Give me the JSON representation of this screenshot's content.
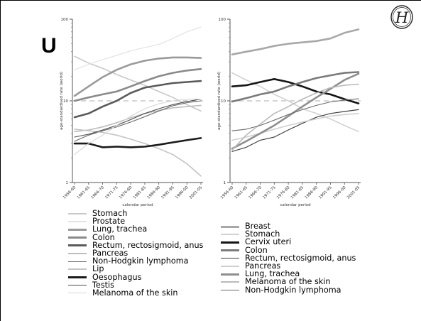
{
  "slide": {
    "letter": "U",
    "logo_text": "H",
    "logo_icon": "circled-h-logo-icon"
  },
  "chart_data": [
    {
      "type": "line",
      "xlabel": "calendar period",
      "ylabel": "age-standardised rate (world)",
      "y_scale": "log",
      "ylim": [
        1,
        100
      ],
      "yticks": [
        "1",
        "10",
        "100"
      ],
      "reference_line": 10,
      "categories": [
        "1956-60",
        "1961-65",
        "1966-70",
        "1971-75",
        "1976-80",
        "1981-85",
        "1986-90",
        "1991-95",
        "1996-00",
        "2001-05"
      ],
      "series": [
        {
          "name": "Stomach",
          "color": "#c8c8c8",
          "width": 1.6,
          "values": [
            35,
            29,
            25,
            21,
            18,
            15.5,
            13,
            11,
            9,
            7.5
          ]
        },
        {
          "name": "Prostate",
          "color": "#e3e3e3",
          "width": 1.2,
          "values": [
            24,
            28,
            32,
            36,
            41,
            45,
            49,
            58,
            70,
            80
          ]
        },
        {
          "name": "Lung, trachea",
          "color": "#9a9a9a",
          "width": 2.6,
          "values": [
            11.5,
            15,
            19.5,
            24,
            28,
            31,
            33,
            34,
            34,
            33.5
          ]
        },
        {
          "name": "Colon",
          "color": "#8a8a8a",
          "width": 2.6,
          "values": [
            10,
            11,
            12,
            13,
            15,
            17.5,
            20,
            22,
            23.5,
            24.5
          ]
        },
        {
          "name": "Rectum, rectosigmoid, anus",
          "color": "#5a5a5a",
          "width": 2.6,
          "values": [
            6.3,
            7,
            8.5,
            10,
            12.5,
            14.5,
            15.5,
            16.5,
            17,
            17.5
          ]
        },
        {
          "name": "Pancreas",
          "color": "#bdbdbd",
          "width": 1.6,
          "values": [
            4.2,
            4.4,
            4.8,
            5.4,
            6.2,
            7,
            7.6,
            8.2,
            8.5,
            8.8
          ]
        },
        {
          "name": "Non-Hodgkin lymphoma",
          "color": "#6a6a6a",
          "width": 1.1,
          "values": [
            3.2,
            3.8,
            4.3,
            4.8,
            5.5,
            6.4,
            7.5,
            8.7,
            9.5,
            10
          ]
        },
        {
          "name": "Lip",
          "color": "#c4c4c4",
          "width": 1.6,
          "values": [
            4.5,
            4.3,
            4.1,
            3.8,
            3.4,
            3,
            2.6,
            2.2,
            1.7,
            1.2
          ]
        },
        {
          "name": "Oesophagus",
          "color": "#1a1a1a",
          "width": 2.6,
          "values": [
            3,
            3,
            2.7,
            2.75,
            2.7,
            2.75,
            2.9,
            3.1,
            3.3,
            3.5
          ]
        },
        {
          "name": "Testis",
          "color": "#4a4a4a",
          "width": 1.1,
          "values": [
            3.6,
            3.9,
            4.4,
            5,
            5.9,
            7,
            8,
            9,
            9.8,
            10.5
          ]
        },
        {
          "name": "Melanoma of the skin",
          "color": "#d7d7d7",
          "width": 1.1,
          "values": [
            2.2,
            3,
            3.8,
            5,
            6.5,
            8,
            9.2,
            10,
            10.5,
            10.5
          ]
        }
      ]
    },
    {
      "type": "line",
      "xlabel": "calendar period",
      "ylabel": "age-standardised rate (world)",
      "y_scale": "log",
      "ylim": [
        1,
        100
      ],
      "yticks": [
        "1",
        "10",
        "100"
      ],
      "reference_line": 10,
      "categories": [
        "1956-60",
        "1961-65",
        "1966-70",
        "1971-75",
        "1976-80",
        "1981-85",
        "1986-90",
        "1991-95",
        "1996-00",
        "2001-05"
      ],
      "series": [
        {
          "name": "Breast",
          "color": "#a8a8a8",
          "width": 2.6,
          "values": [
            37,
            40,
            43,
            47,
            50,
            52,
            54,
            58,
            68,
            75
          ]
        },
        {
          "name": "Stomach",
          "color": "#d2d2d2",
          "width": 1.6,
          "values": [
            22,
            18,
            15,
            12,
            10,
            8,
            7,
            6,
            5,
            4.2
          ]
        },
        {
          "name": "Cervix uteri",
          "color": "#141414",
          "width": 2.6,
          "values": [
            15,
            15.5,
            17,
            18.5,
            17,
            15,
            13,
            12,
            10.5,
            9.3
          ]
        },
        {
          "name": "Colon",
          "color": "#7a7a7a",
          "width": 2.6,
          "values": [
            9.8,
            10.8,
            12,
            13,
            15,
            17,
            19,
            20.5,
            22,
            22.5
          ]
        },
        {
          "name": "Rectum, rectosigmoid, anus",
          "color": "#404040",
          "width": 1.2,
          "values": [
            2.4,
            2.7,
            3.3,
            3.6,
            4.4,
            5.3,
            6.3,
            7,
            7.4,
            7.8
          ]
        },
        {
          "name": "Pancreas",
          "color": "#cfcfcf",
          "width": 1.6,
          "values": [
            3.3,
            3.6,
            4,
            4.5,
            5,
            5.5,
            6,
            6.5,
            6.8,
            7
          ]
        },
        {
          "name": "Lung, trachea",
          "color": "#8e8e8e",
          "width": 2.6,
          "values": [
            2.6,
            3.2,
            4,
            5,
            6.5,
            8.5,
            11,
            14,
            18,
            21.5
          ]
        },
        {
          "name": "Melanoma of the skin",
          "color": "#bababa",
          "width": 1.6,
          "values": [
            2.5,
            3.8,
            5.2,
            7,
            8.5,
            10.5,
            12.5,
            14.5,
            15.5,
            16
          ]
        },
        {
          "name": "Non-Hodgkin lymphoma",
          "color": "#6a6a6a",
          "width": 1.1,
          "values": [
            4.3,
            4.5,
            5,
            5.8,
            6.8,
            7.8,
            8.8,
            9.7,
            10.2,
            10.6
          ]
        }
      ]
    }
  ],
  "legend_left": [
    {
      "label": "Stomach",
      "color": "#c8c8c8",
      "thickness": 1.6
    },
    {
      "label": "Prostate",
      "color": "#e3e3e3",
      "thickness": 1.4
    },
    {
      "label": "Lung, trachea",
      "color": "#9a9a9a",
      "thickness": 3
    },
    {
      "label": "Colon",
      "color": "#8a8a8a",
      "thickness": 3
    },
    {
      "label": "Rectum, rectosigmoid, anus",
      "color": "#5a5a5a",
      "thickness": 3
    },
    {
      "label": "Pancreas",
      "color": "#bdbdbd",
      "thickness": 1.6
    },
    {
      "label": "Non-Hodgkin lymphoma",
      "color": "#6a6a6a",
      "thickness": 1.2
    },
    {
      "label": "Lip",
      "color": "#c4c4c4",
      "thickness": 1.8
    },
    {
      "label": "Oesophagus",
      "color": "#1a1a1a",
      "thickness": 3
    },
    {
      "label": "Testis",
      "color": "#4a4a4a",
      "thickness": 1.2
    },
    {
      "label": "Melanoma of the skin",
      "color": "#d7d7d7",
      "thickness": 1.2
    }
  ],
  "legend_right": [
    {
      "label": "Breast",
      "color": "#a8a8a8",
      "thickness": 3
    },
    {
      "label": "Stomach",
      "color": "#d2d2d2",
      "thickness": 1.8
    },
    {
      "label": "Cervix uteri",
      "color": "#141414",
      "thickness": 3
    },
    {
      "label": "Colon",
      "color": "#7a7a7a",
      "thickness": 3
    },
    {
      "label": "Rectum, rectosigmoid, anus",
      "color": "#404040",
      "thickness": 1.2
    },
    {
      "label": "Pancreas",
      "color": "#cfcfcf",
      "thickness": 1.8
    },
    {
      "label": "Lung, trachea",
      "color": "#8e8e8e",
      "thickness": 3
    },
    {
      "label": "Melanoma of the skin",
      "color": "#bababa",
      "thickness": 1.8
    },
    {
      "label": "Non-Hodgkin lymphoma",
      "color": "#6a6a6a",
      "thickness": 1.2
    }
  ]
}
